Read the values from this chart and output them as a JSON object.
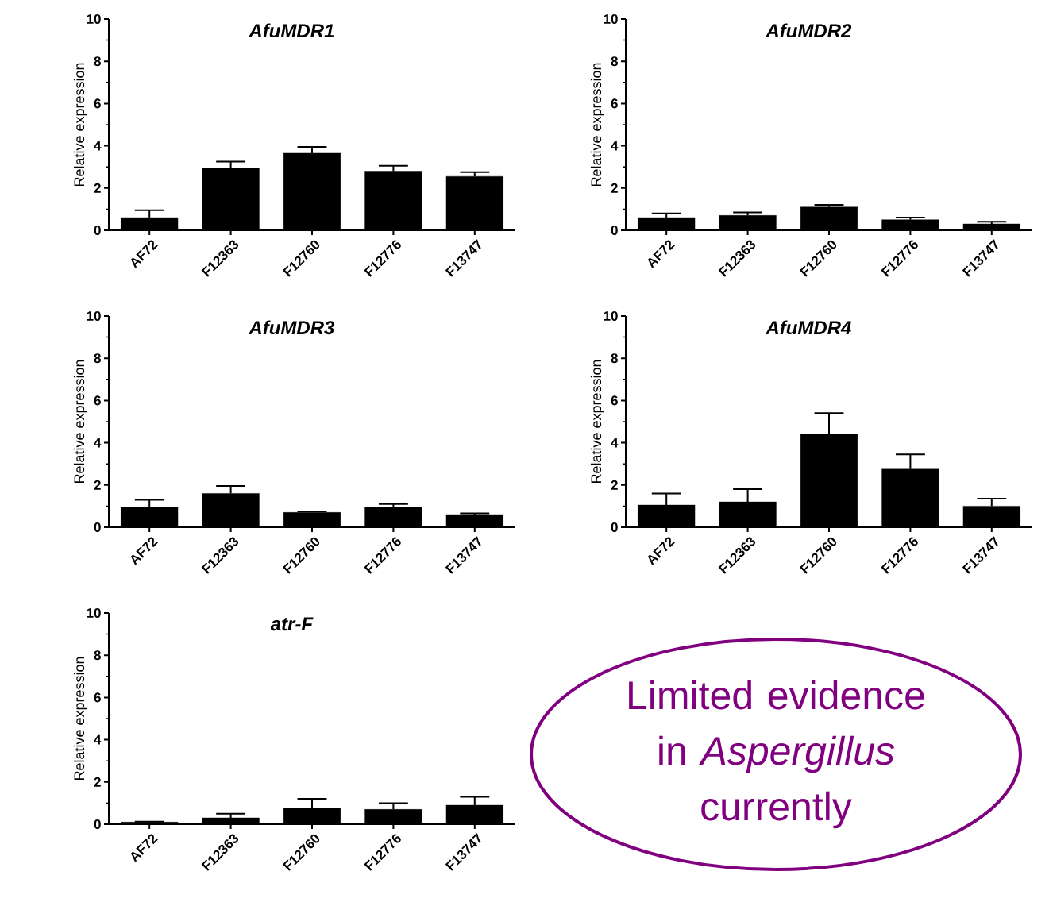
{
  "chart_data": [
    {
      "type": "bar",
      "title": "AfuMDR1",
      "ylabel": "Relative expression",
      "categories": [
        "AF72",
        "F12363",
        "F12760",
        "F12776",
        "F13747"
      ],
      "values": [
        0.6,
        2.95,
        3.65,
        2.8,
        2.55
      ],
      "errors": [
        [
          0.6,
          0.95
        ],
        [
          2.95,
          3.25
        ],
        [
          3.65,
          3.95
        ],
        [
          2.8,
          3.05
        ],
        [
          2.55,
          2.75
        ]
      ],
      "color": "#000000",
      "ylim": [
        0,
        10
      ],
      "yticks": [
        0,
        2,
        4,
        6,
        8,
        10
      ]
    },
    {
      "type": "bar",
      "title": "AfuMDR2",
      "ylabel": "Relative expression",
      "categories": [
        "AF72",
        "F12363",
        "F12760",
        "F12776",
        "F13747"
      ],
      "values": [
        0.6,
        0.7,
        1.1,
        0.5,
        0.3
      ],
      "errors": [
        [
          0.6,
          0.8
        ],
        [
          0.7,
          0.85
        ],
        [
          1.1,
          1.2
        ],
        [
          0.5,
          0.6
        ],
        [
          0.3,
          0.4
        ]
      ],
      "color": "#000000",
      "ylim": [
        0,
        10
      ],
      "yticks": [
        0,
        2,
        4,
        6,
        8,
        10
      ]
    },
    {
      "type": "bar",
      "title": "AfuMDR3",
      "ylabel": "Relative expression",
      "categories": [
        "AF72",
        "F12363",
        "F12760",
        "F12776",
        "F13747"
      ],
      "values": [
        0.95,
        1.6,
        0.7,
        0.95,
        0.6
      ],
      "errors": [
        [
          0.95,
          1.3
        ],
        [
          1.6,
          1.95
        ],
        [
          0.7,
          0.75
        ],
        [
          0.95,
          1.1
        ],
        [
          0.6,
          0.66
        ]
      ],
      "color": "#000000",
      "ylim": [
        0,
        10
      ],
      "yticks": [
        0,
        2,
        4,
        6,
        8,
        10
      ]
    },
    {
      "type": "bar",
      "title": "AfuMDR4",
      "ylabel": "Relative expression",
      "categories": [
        "AF72",
        "F12363",
        "F12760",
        "F12776",
        "F13747"
      ],
      "values": [
        1.05,
        1.2,
        4.4,
        2.75,
        1.0
      ],
      "errors": [
        [
          1.05,
          1.6
        ],
        [
          1.2,
          1.8
        ],
        [
          4.4,
          5.4
        ],
        [
          2.75,
          3.45
        ],
        [
          1.0,
          1.35
        ]
      ],
      "color": "#000000",
      "ylim": [
        0,
        10
      ],
      "yticks": [
        0,
        2,
        4,
        6,
        8,
        10
      ]
    },
    {
      "type": "bar",
      "title": "atr-F",
      "ylabel": "Relative expression",
      "categories": [
        "AF72",
        "F12363",
        "F12760",
        "F12776",
        "F13747"
      ],
      "values": [
        0.1,
        0.3,
        0.75,
        0.7,
        0.9
      ],
      "errors": [
        [
          0.1,
          0.12
        ],
        [
          0.3,
          0.5
        ],
        [
          0.75,
          1.2
        ],
        [
          0.7,
          1.0
        ],
        [
          0.9,
          1.3
        ]
      ],
      "color": "#000000",
      "ylim": [
        0,
        10
      ],
      "yticks": [
        0,
        2,
        4,
        6,
        8,
        10
      ]
    },
    {
      "type": "other",
      "annotations": [
        "Limited evidence in *Aspergillus* currently"
      ],
      "color": "#800080"
    }
  ]
}
